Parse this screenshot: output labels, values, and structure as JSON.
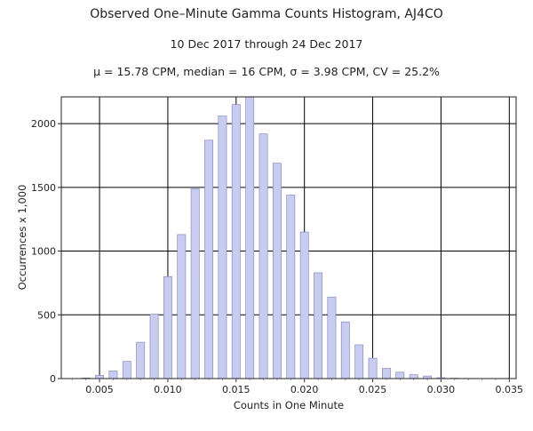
{
  "header": {
    "title": "Observed One–Minute Gamma Counts Histogram, AJ4CO",
    "subtitle": "10 Dec 2017 through 24 Dec 2017",
    "stats": "μ = 15.78 CPM,   median = 16 CPM,   σ = 3.98 CPM,   CV = 25.2%"
  },
  "chart_data": {
    "type": "bar",
    "title": "Observed One–Minute Gamma Counts Histogram, AJ4CO",
    "subtitle": "10 Dec 2017 through 24 Dec 2017",
    "xlabel": "Counts in One Minute",
    "ylabel": "Occurrences x 1,000",
    "xlim": [
      0.0022,
      0.0355
    ],
    "ylim": [
      0,
      2210
    ],
    "x_ticks": [
      0.005,
      0.01,
      0.015,
      0.02,
      0.025,
      0.03,
      0.035
    ],
    "x_tick_labels": [
      "0.005",
      "0.010",
      "0.015",
      "0.020",
      "0.025",
      "0.030",
      "0.035"
    ],
    "y_ticks": [
      0,
      500,
      1000,
      1500,
      2000
    ],
    "y_tick_labels": [
      "0",
      "500",
      "1000",
      "1500",
      "2000"
    ],
    "grid": true,
    "bar_color": "#c8cdf0",
    "bar_edge": "#7a80b8",
    "x": [
      0.003,
      0.004,
      0.005,
      0.006,
      0.007,
      0.008,
      0.009,
      0.01,
      0.011,
      0.012,
      0.013,
      0.014,
      0.015,
      0.016,
      0.017,
      0.018,
      0.019,
      0.02,
      0.021,
      0.022,
      0.023,
      0.024,
      0.025,
      0.026,
      0.027,
      0.028,
      0.029,
      0.03,
      0.031,
      0.032
    ],
    "values": [
      1,
      5,
      25,
      60,
      135,
      285,
      505,
      800,
      1130,
      1490,
      1870,
      2060,
      2150,
      2210,
      1920,
      1690,
      1440,
      1150,
      830,
      640,
      445,
      265,
      160,
      80,
      50,
      30,
      20,
      7,
      3,
      2
    ]
  }
}
